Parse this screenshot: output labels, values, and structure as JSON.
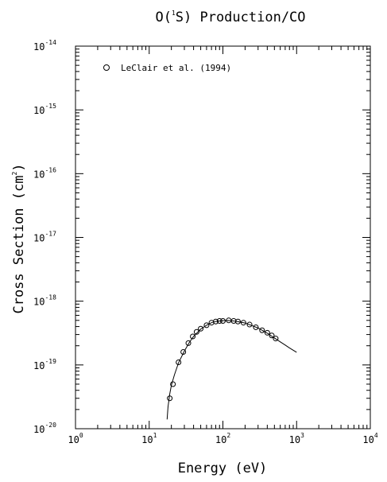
{
  "chart_data": {
    "type": "scatter",
    "title": "O(¹S) Production/CO",
    "title_parts": {
      "pre": "O(",
      "sup": "1",
      "post": "S) Production/CO"
    },
    "xlabel": "Energy (eV)",
    "ylabel": "Cross Section (cm²)",
    "ylabel_parts": {
      "pre": "Cross Section (cm",
      "sup": "2",
      "post": ")"
    },
    "x_scale": "log",
    "y_scale": "log",
    "xlim": [
      1,
      10000
    ],
    "ylim": [
      1e-20,
      1e-14
    ],
    "x_ticks": [
      {
        "value": 1,
        "base": "10",
        "exp": "0"
      },
      {
        "value": 10,
        "base": "10",
        "exp": "1"
      },
      {
        "value": 100,
        "base": "10",
        "exp": "2"
      },
      {
        "value": 1000,
        "base": "10",
        "exp": "3"
      },
      {
        "value": 10000,
        "base": "10",
        "exp": "4"
      }
    ],
    "y_ticks": [
      {
        "value": 1e-20,
        "base": "10",
        "exp": "-20"
      },
      {
        "value": 1e-19,
        "base": "10",
        "exp": "-19"
      },
      {
        "value": 1e-18,
        "base": "10",
        "exp": "-18"
      },
      {
        "value": 1e-17,
        "base": "10",
        "exp": "-17"
      },
      {
        "value": 1e-16,
        "base": "10",
        "exp": "-16"
      },
      {
        "value": 1e-15,
        "base": "10",
        "exp": "-15"
      },
      {
        "value": 1e-14,
        "base": "10",
        "exp": "-14"
      }
    ],
    "grid": false,
    "legend_position": "top-left",
    "series": [
      {
        "name": "LeClair et al. (1994)",
        "kind": "points",
        "marker": "open-circle",
        "points": [
          [
            19,
            3e-20
          ],
          [
            21,
            5e-20
          ],
          [
            25,
            1.1e-19
          ],
          [
            29,
            1.6e-19
          ],
          [
            34,
            2.2e-19
          ],
          [
            39,
            2.8e-19
          ],
          [
            44,
            3.3e-19
          ],
          [
            50,
            3.7e-19
          ],
          [
            60,
            4.2e-19
          ],
          [
            70,
            4.6e-19
          ],
          [
            80,
            4.8e-19
          ],
          [
            90,
            4.9e-19
          ],
          [
            100,
            4.9e-19
          ],
          [
            120,
            5e-19
          ],
          [
            140,
            4.9e-19
          ],
          [
            160,
            4.8e-19
          ],
          [
            190,
            4.6e-19
          ],
          [
            230,
            4.3e-19
          ],
          [
            280,
            3.9e-19
          ],
          [
            340,
            3.5e-19
          ],
          [
            400,
            3.2e-19
          ],
          [
            460,
            2.9e-19
          ],
          [
            520,
            2.6e-19
          ]
        ]
      },
      {
        "name": "",
        "kind": "line",
        "points": [
          [
            17.5,
            1.4e-20
          ],
          [
            18,
            2.2e-20
          ],
          [
            19,
            3.5e-20
          ],
          [
            20,
            4.8e-20
          ],
          [
            22,
            7e-20
          ],
          [
            25,
            1.08e-19
          ],
          [
            30,
            1.65e-19
          ],
          [
            35,
            2.25e-19
          ],
          [
            40,
            2.8e-19
          ],
          [
            50,
            3.65e-19
          ],
          [
            60,
            4.2e-19
          ],
          [
            70,
            4.6e-19
          ],
          [
            80,
            4.82e-19
          ],
          [
            100,
            4.95e-19
          ],
          [
            120,
            4.97e-19
          ],
          [
            150,
            4.85e-19
          ],
          [
            200,
            4.55e-19
          ],
          [
            300,
            3.8e-19
          ],
          [
            400,
            3.15e-19
          ],
          [
            500,
            2.65e-19
          ],
          [
            600,
            2.3e-19
          ],
          [
            700,
            2.05e-19
          ],
          [
            800,
            1.85e-19
          ],
          [
            1000,
            1.58e-19
          ]
        ]
      }
    ]
  }
}
